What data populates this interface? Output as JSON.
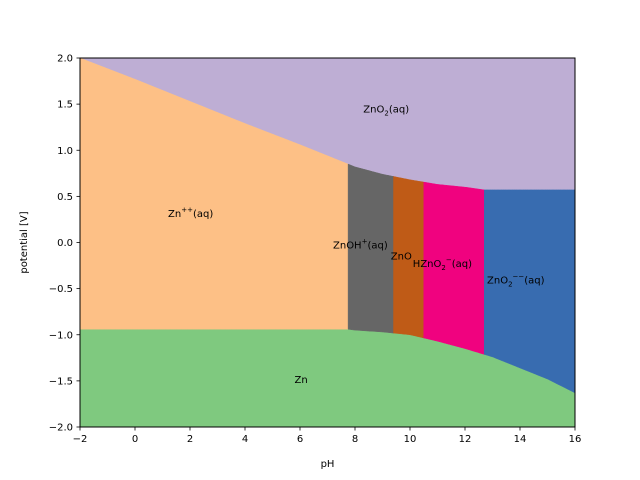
{
  "chart_data": {
    "type": "heatmap",
    "subtype": "pourbaix-diagram",
    "title": "",
    "xlabel": "pH",
    "ylabel": "potential [V]",
    "xlim": [
      -2,
      16
    ],
    "ylim": [
      -2.0,
      2.0
    ],
    "xticks": [
      "−2",
      "0",
      "2",
      "4",
      "6",
      "8",
      "10",
      "12",
      "14",
      "16"
    ],
    "yticks": [
      "−2.0",
      "−1.5",
      "−1.0",
      "−0.5",
      "0.0",
      "0.5",
      "1.0",
      "1.5",
      "2.0"
    ],
    "grid": false,
    "legend": null,
    "regions": [
      {
        "name": "ZnO2(aq)",
        "label_main": "ZnO",
        "label_sub": "2",
        "label_tail": "(aq)",
        "color": "#beaed4",
        "label_pos": [
          8.3,
          1.45
        ]
      },
      {
        "name": "Zn++(aq)",
        "label_main": "Zn",
        "label_sup": "++",
        "label_tail": "(aq)",
        "color": "#fdc086",
        "label_pos": [
          1.2,
          0.32
        ]
      },
      {
        "name": "ZnOH+(aq)",
        "label_main": "ZnOH",
        "label_sup": "+",
        "label_tail": "(aq)",
        "color": "#666666",
        "label_pos": [
          7.2,
          -0.02
        ]
      },
      {
        "name": "ZnO",
        "label_main": "ZnO",
        "color": "#bf5b17",
        "label_pos": [
          9.3,
          -0.14
        ]
      },
      {
        "name": "HZnO2-(aq)",
        "label_main": "HZnO",
        "label_sub": "2",
        "label_sup": "−",
        "label_tail": "(aq)",
        "color": "#f0027f",
        "label_pos": [
          10.1,
          -0.22
        ]
      },
      {
        "name": "ZnO2--(aq)",
        "label_main": "ZnO",
        "label_sub": "2",
        "label_sup": "−−",
        "label_tail": "(aq)",
        "color": "#386cb0",
        "label_pos": [
          12.8,
          -0.4
        ]
      },
      {
        "name": "Zn",
        "label_main": "Zn",
        "color": "#7fc97f",
        "label_pos": [
          5.8,
          -1.48
        ]
      }
    ],
    "boundaries": {
      "vertical_pH": [
        {
          "between": [
            "Zn++(aq)",
            "ZnOH+(aq)"
          ],
          "pH": 7.75
        },
        {
          "between": [
            "ZnOH+(aq)",
            "ZnO"
          ],
          "pH": 9.4
        },
        {
          "between": [
            "ZnO",
            "HZnO2-(aq)"
          ],
          "pH": 10.5
        },
        {
          "between": [
            "HZnO2-(aq)",
            "ZnO2--(aq)"
          ],
          "pH": 12.7
        }
      ],
      "upper_ZnO2aq": {
        "pH": [
          -2,
          0,
          2,
          4,
          6,
          7.75,
          8,
          9,
          10,
          11,
          12,
          12.7,
          14,
          16
        ],
        "E": [
          2.0,
          1.77,
          1.53,
          1.29,
          1.06,
          0.85,
          0.82,
          0.74,
          0.68,
          0.63,
          0.6,
          0.57,
          0.57,
          0.57
        ]
      },
      "lower_Zn": {
        "pH": [
          -2,
          0,
          2,
          4,
          6,
          7.75,
          8,
          9,
          10,
          11,
          12,
          13,
          14,
          15,
          16
        ],
        "E": [
          -0.94,
          -0.94,
          -0.94,
          -0.94,
          -0.94,
          -0.94,
          -0.95,
          -0.97,
          -1.0,
          -1.07,
          -1.15,
          -1.24,
          -1.36,
          -1.48,
          -1.63
        ]
      }
    }
  }
}
